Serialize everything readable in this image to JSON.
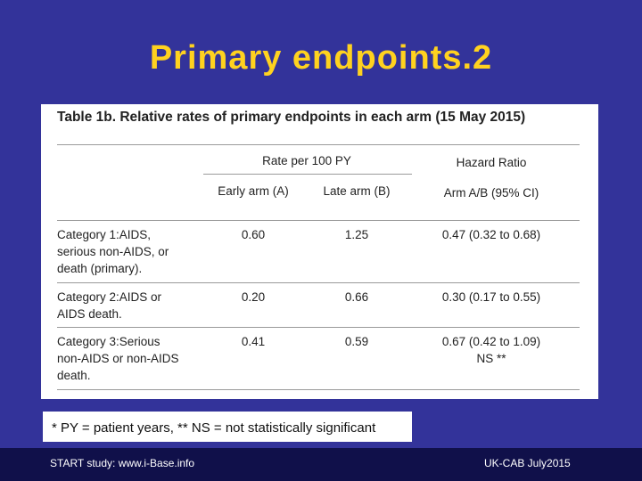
{
  "slide": {
    "title": "Primary endpoints.2"
  },
  "table": {
    "heading": "Table 1b. Relative rates of primary endpoints in each arm (15 May 2015)",
    "group_header": "Rate per 100 PY",
    "hr_header": "Hazard Ratio",
    "col_early": "Early arm (A)",
    "col_late": "Late arm (B)",
    "col_hr": "Arm A/B (95% CI)",
    "rows": [
      {
        "label_lines": [
          "Category 1:AIDS,",
          "serious non-AIDS, or",
          "death (primary)."
        ],
        "early": "0.60",
        "late": "1.25",
        "hr_lines": [
          "0.47 (0.32 to 0.68)"
        ]
      },
      {
        "label_lines": [
          "Category 2:AIDS or",
          "AIDS death."
        ],
        "early": "0.20",
        "late": "0.66",
        "hr_lines": [
          "0.30 (0.17 to 0.55)"
        ]
      },
      {
        "label_lines": [
          "Category 3:Serious",
          "non-AIDS or non-AIDS",
          "death."
        ],
        "early": "0.41",
        "late": "0.59",
        "hr_lines": [
          "0.67 (0.42 to 1.09)",
          "NS **"
        ]
      }
    ]
  },
  "footnote": "* PY = patient years, ** NS = not statistically significant",
  "footer": {
    "left": "START study: www.i-Base.info",
    "right": "UK-CAB July2015"
  }
}
